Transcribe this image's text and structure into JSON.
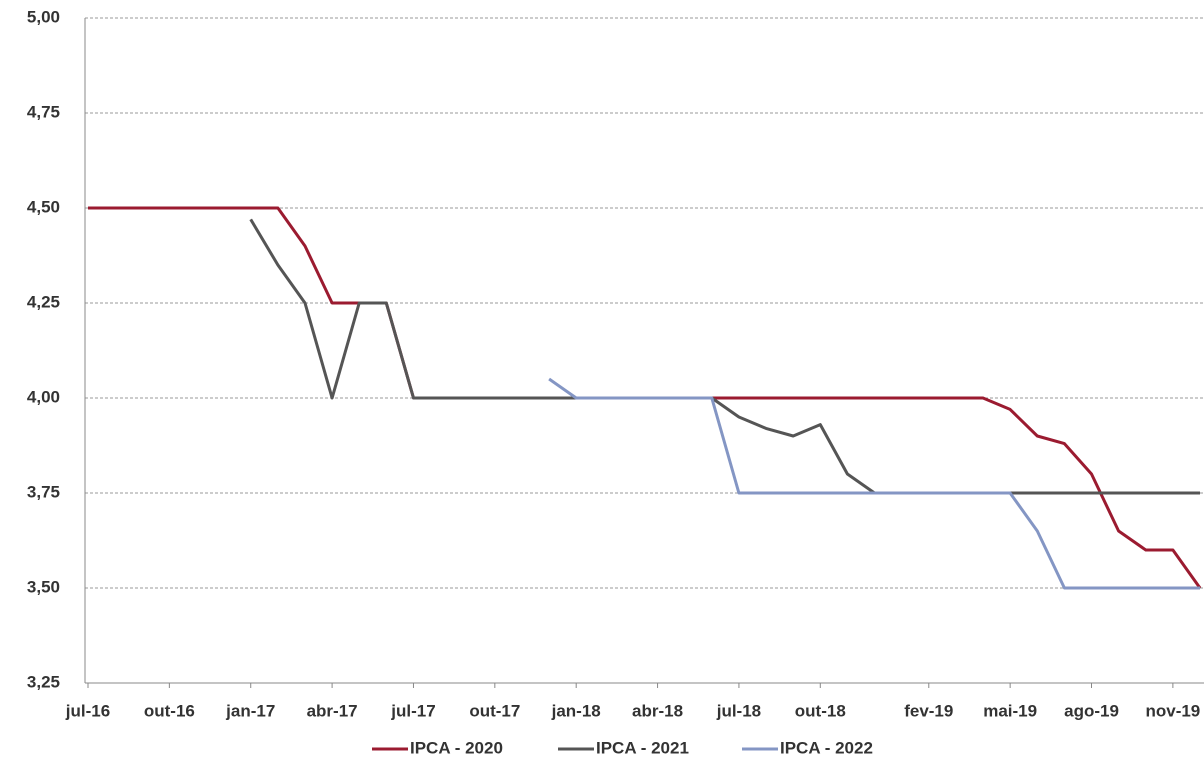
{
  "chart_data": {
    "type": "line",
    "x": [
      "2016-07",
      "2016-08",
      "2016-09",
      "2016-10",
      "2016-11",
      "2016-12",
      "2017-01",
      "2017-02",
      "2017-03",
      "2017-04",
      "2017-05",
      "2017-06",
      "2017-07",
      "2017-08",
      "2017-09",
      "2017-10",
      "2017-11",
      "2017-12",
      "2018-01",
      "2018-02",
      "2018-03",
      "2018-04",
      "2018-05",
      "2018-06",
      "2018-07",
      "2018-08",
      "2018-09",
      "2018-10",
      "2018-11",
      "2018-12",
      "2019-01",
      "2019-02",
      "2019-03",
      "2019-04",
      "2019-05",
      "2019-06",
      "2019-07",
      "2019-08",
      "2019-09",
      "2019-10",
      "2019-11",
      "2019-12"
    ],
    "series": [
      {
        "name": "IPCA - 2020",
        "color": "#9b1b30",
        "values": [
          4.5,
          4.5,
          4.5,
          4.5,
          4.5,
          4.5,
          4.5,
          4.5,
          4.4,
          4.25,
          4.25,
          4.25,
          4,
          4,
          4,
          4,
          4,
          4,
          4,
          4,
          4,
          4,
          4,
          4,
          4,
          4,
          4,
          4,
          4,
          4,
          4,
          4,
          4,
          4,
          3.97,
          3.9,
          3.88,
          3.8,
          3.65,
          3.6,
          3.6,
          3.5
        ]
      },
      {
        "name": "IPCA - 2021",
        "color": "#555555",
        "values": [
          null,
          null,
          null,
          null,
          null,
          null,
          4.47,
          4.35,
          4.25,
          4,
          4.25,
          4.25,
          4,
          4,
          4,
          4,
          4,
          4,
          4,
          4,
          4,
          4,
          4,
          4,
          3.95,
          3.92,
          3.9,
          3.93,
          3.8,
          3.75,
          3.75,
          3.75,
          3.75,
          3.75,
          3.75,
          3.75,
          3.75,
          3.75,
          3.75,
          3.75,
          3.75,
          3.75
        ]
      },
      {
        "name": "IPCA - 2022",
        "color": "#8496c4",
        "values": [
          null,
          null,
          null,
          null,
          null,
          null,
          null,
          null,
          null,
          null,
          null,
          null,
          null,
          null,
          null,
          null,
          null,
          4.05,
          4,
          4,
          4,
          4,
          4,
          4,
          3.75,
          3.75,
          3.75,
          3.75,
          3.75,
          3.75,
          3.75,
          3.75,
          3.75,
          3.75,
          3.75,
          3.65,
          3.5,
          3.5,
          3.5,
          3.5,
          3.5,
          3.5
        ]
      }
    ],
    "xlim": [
      "2016-07",
      "2019-12"
    ],
    "xticks": [
      {
        "value": "2016-07",
        "label": "jul-16"
      },
      {
        "value": "2016-10",
        "label": "out-16"
      },
      {
        "value": "2017-01",
        "label": "jan-17"
      },
      {
        "value": "2017-04",
        "label": "abr-17"
      },
      {
        "value": "2017-07",
        "label": "jul-17"
      },
      {
        "value": "2017-10",
        "label": "out-17"
      },
      {
        "value": "2018-01",
        "label": "jan-18"
      },
      {
        "value": "2018-04",
        "label": "abr-18"
      },
      {
        "value": "2018-07",
        "label": "jul-18"
      },
      {
        "value": "2018-10",
        "label": "out-18"
      },
      {
        "value": "2019-02",
        "label": "fev-19"
      },
      {
        "value": "2019-05",
        "label": "mai-19"
      },
      {
        "value": "2019-08",
        "label": "ago-19"
      },
      {
        "value": "2019-11",
        "label": "nov-19"
      }
    ],
    "ylim": [
      3.25,
      5
    ],
    "yticks": [
      {
        "value": 3.25,
        "label": "3,25"
      },
      {
        "value": 3.5,
        "label": "3,50"
      },
      {
        "value": 3.75,
        "label": "3,75"
      },
      {
        "value": 4,
        "label": "4,00"
      },
      {
        "value": 4.25,
        "label": "4,25"
      },
      {
        "value": 4.5,
        "label": "4,50"
      },
      {
        "value": 4.75,
        "label": "4,75"
      },
      {
        "value": 5,
        "label": "5,00"
      }
    ],
    "grid": true,
    "legend": "bottom"
  }
}
